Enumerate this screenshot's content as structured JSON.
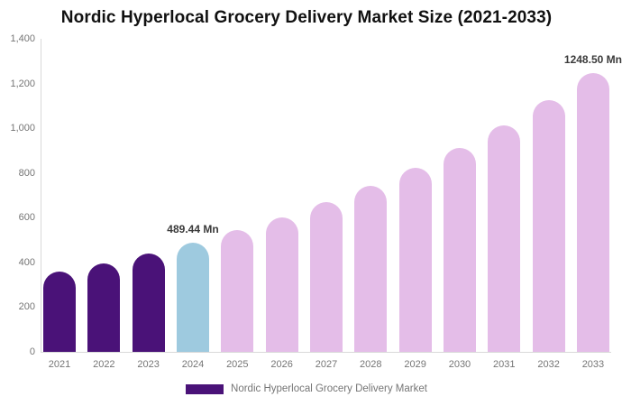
{
  "title": "Nordic Hyperlocal Grocery Delivery Market Size (2021-2033)",
  "legend": {
    "label": "Nordic Hyperlocal Grocery Delivery Market",
    "swatch_color": "#4A1278"
  },
  "colors": {
    "historical": "#4A1278",
    "base_year": "#9ECADF",
    "forecast": "#E4BDE8",
    "axis_line": "#D9D9D9",
    "axis_text": "#757575",
    "data_label_text": "#3A3A3A",
    "title_text": "#111111",
    "background": "#FFFFFF"
  },
  "chart_data": {
    "type": "bar",
    "title": "Nordic Hyperlocal Grocery Delivery Market Size (2021-2033)",
    "unit": "Mn",
    "categories": [
      "2021",
      "2022",
      "2023",
      "2024",
      "2025",
      "2026",
      "2027",
      "2028",
      "2029",
      "2030",
      "2031",
      "2032",
      "2033"
    ],
    "values": [
      358,
      397,
      441,
      489.44,
      543,
      603,
      669,
      742,
      824,
      914,
      1014,
      1126,
      1248.5
    ],
    "color_keys": [
      "historical",
      "historical",
      "historical",
      "base_year",
      "forecast",
      "forecast",
      "forecast",
      "forecast",
      "forecast",
      "forecast",
      "forecast",
      "forecast",
      "forecast"
    ],
    "annotations": [
      {
        "category": "2024",
        "text": "489.44 Mn"
      },
      {
        "category": "2033",
        "text": "1248.50 Mn"
      }
    ],
    "xlabel": "",
    "ylabel": "",
    "ylim": [
      0,
      1400
    ],
    "y_ticks": [
      {
        "label": "0",
        "value": 0
      },
      {
        "label": "200",
        "value": 200
      },
      {
        "label": "400",
        "value": 400
      },
      {
        "label": "600",
        "value": 600
      },
      {
        "label": "800",
        "value": 800
      },
      {
        "label": "1,000",
        "value": 1000
      },
      {
        "label": "1,200",
        "value": 1200
      },
      {
        "label": "1,400",
        "value": 1400
      }
    ],
    "grid": false,
    "legend_position": "bottom"
  }
}
